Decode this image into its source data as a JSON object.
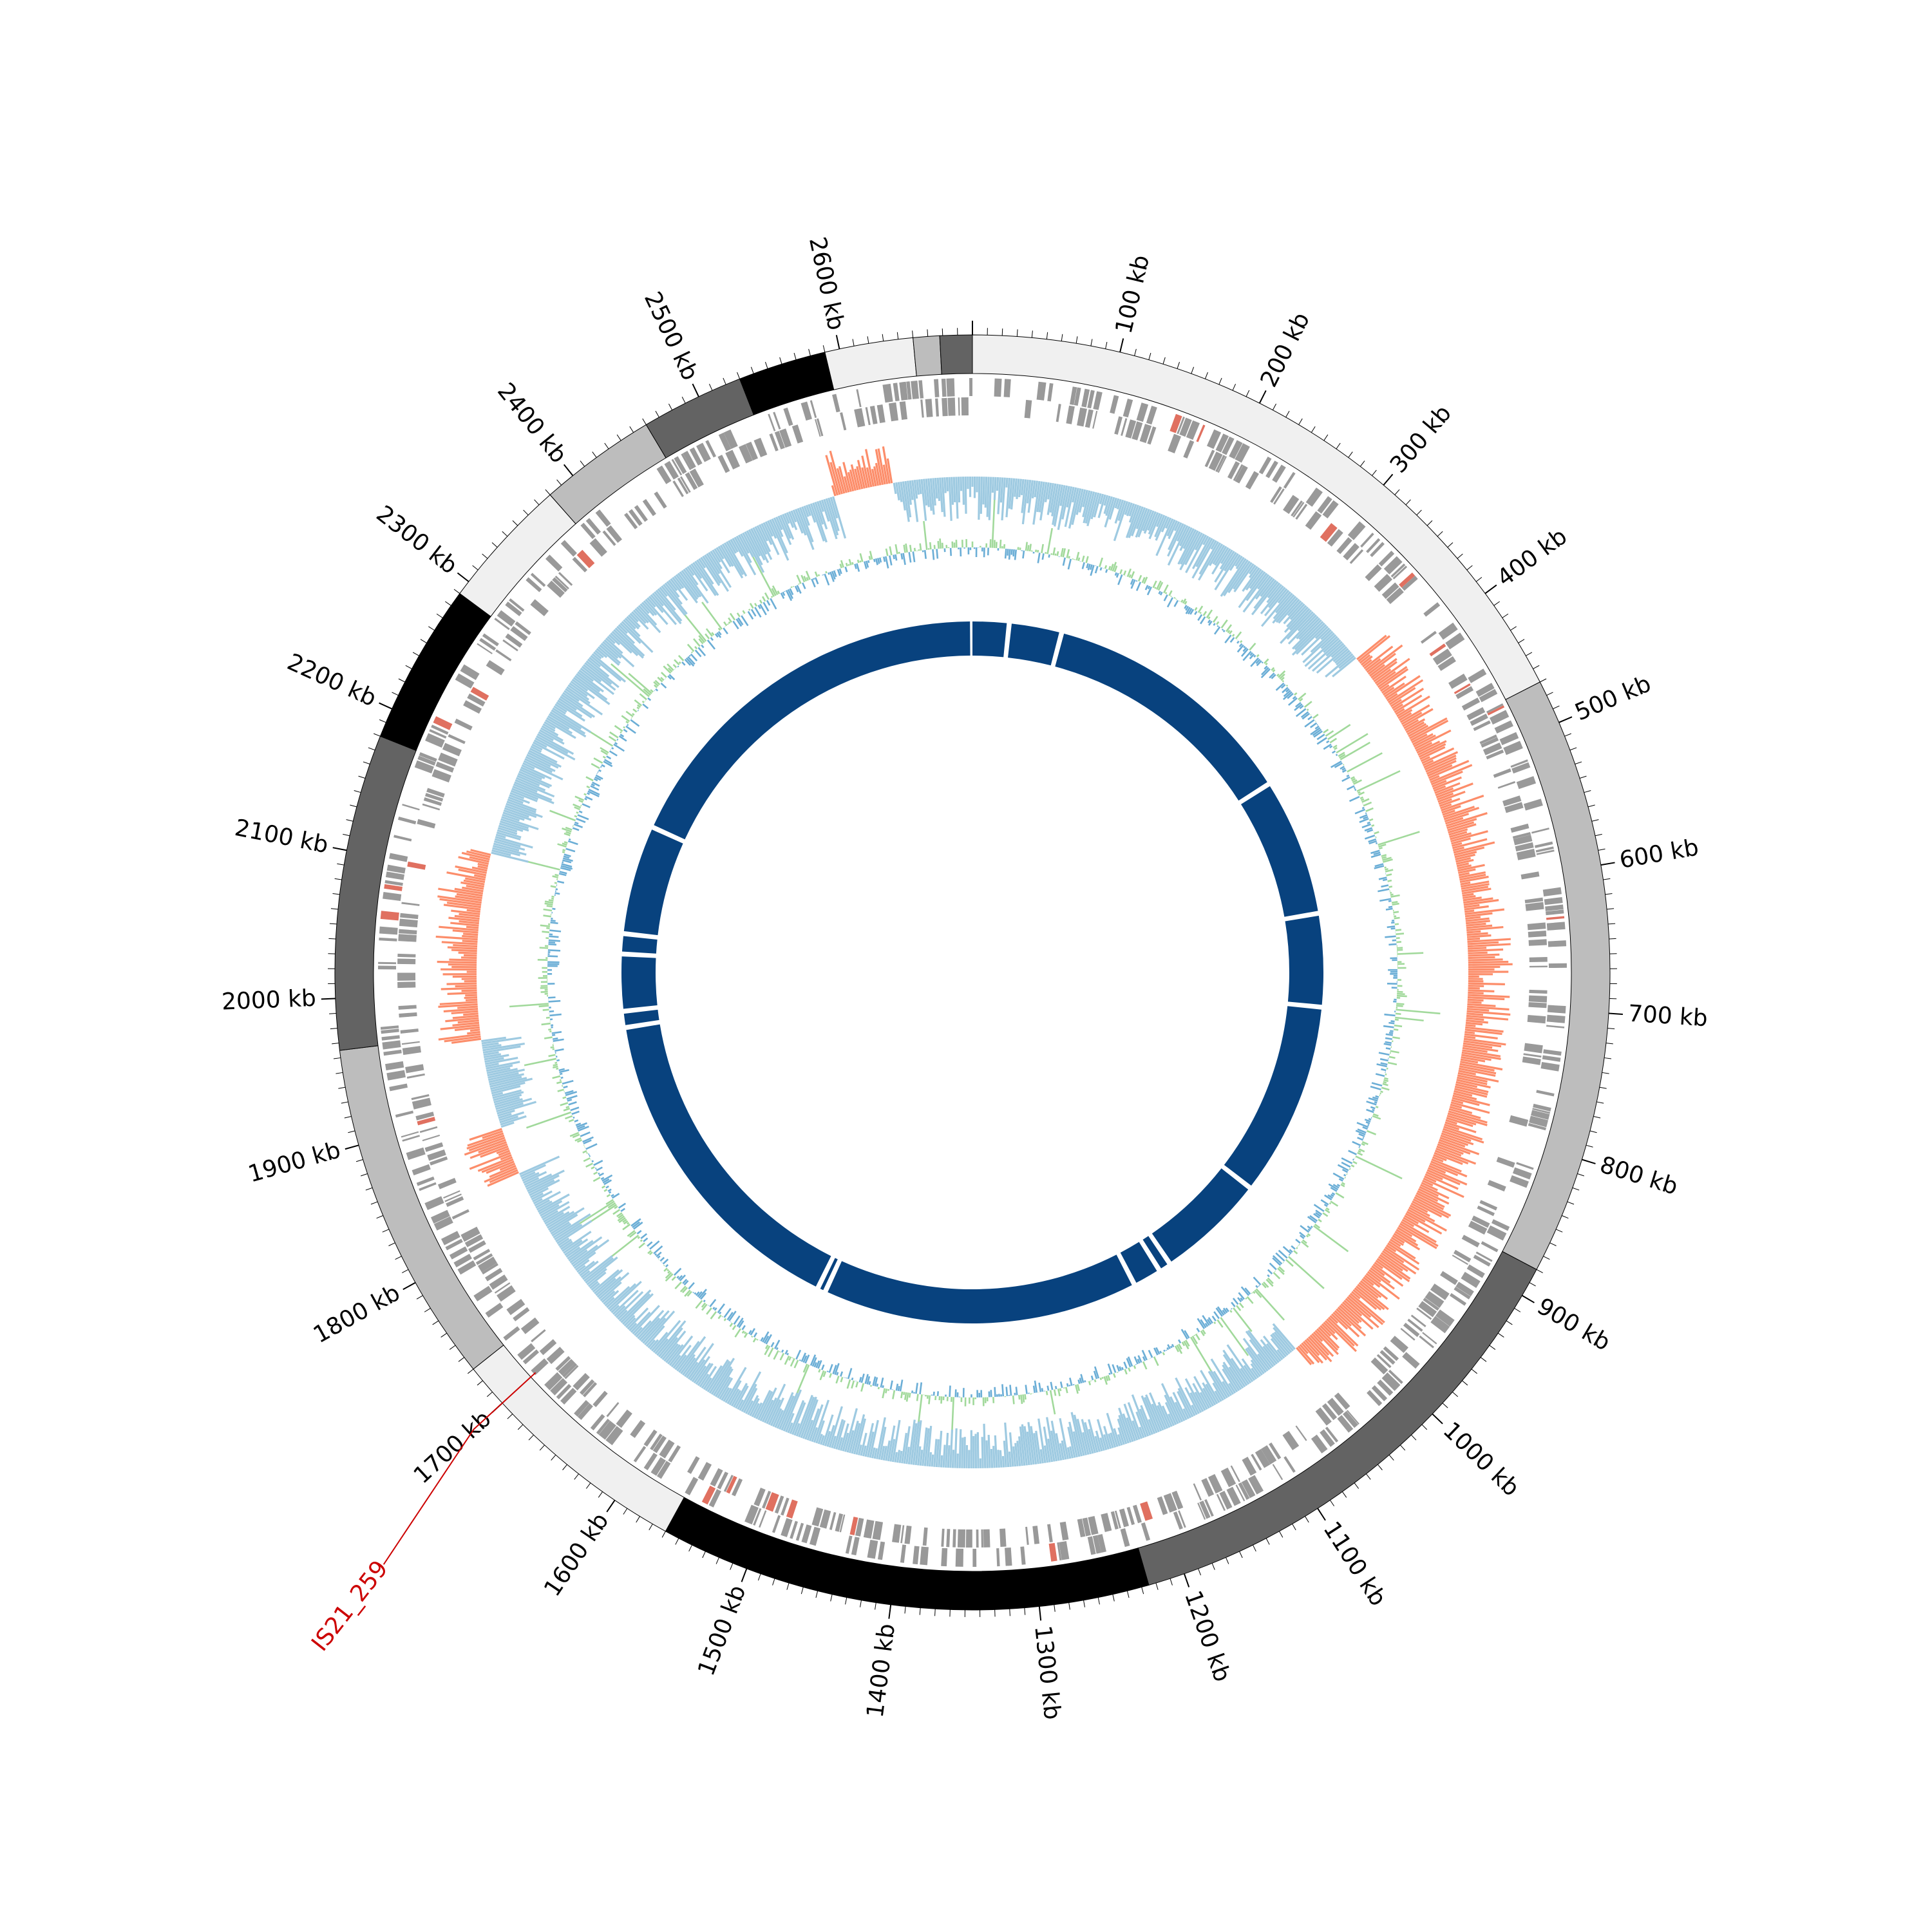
{
  "genome": {
    "length_kb": 2690,
    "tick_labels": [
      {
        "kb": 100,
        "text": "100 kb"
      },
      {
        "kb": 200,
        "text": "200 kb"
      },
      {
        "kb": 300,
        "text": "300 kb"
      },
      {
        "kb": 400,
        "text": "400 kb"
      },
      {
        "kb": 500,
        "text": "500 kb"
      },
      {
        "kb": 600,
        "text": "600 kb"
      },
      {
        "kb": 700,
        "text": "700 kb"
      },
      {
        "kb": 800,
        "text": "800 kb"
      },
      {
        "kb": 900,
        "text": "900 kb"
      },
      {
        "kb": 1000,
        "text": "1000 kb"
      },
      {
        "kb": 1100,
        "text": "1100 kb"
      },
      {
        "kb": 1200,
        "text": "1200 kb"
      },
      {
        "kb": 1300,
        "text": "1300 kb"
      },
      {
        "kb": 1400,
        "text": "1400 kb"
      },
      {
        "kb": 1500,
        "text": "1500 kb"
      },
      {
        "kb": 1600,
        "text": "1600 kb"
      },
      {
        "kb": 1700,
        "text": "1700 kb"
      },
      {
        "kb": 1800,
        "text": "1800 kb"
      },
      {
        "kb": 1900,
        "text": "1900 kb"
      },
      {
        "kb": 2000,
        "text": "2000 kb"
      },
      {
        "kb": 2100,
        "text": "2100 kb"
      },
      {
        "kb": 2200,
        "text": "2200 kb"
      },
      {
        "kb": 2300,
        "text": "2300 kb"
      },
      {
        "kb": 2400,
        "text": "2400 kb"
      },
      {
        "kb": 2500,
        "text": "2500 kb"
      },
      {
        "kb": 2600,
        "text": "2600 kb"
      }
    ]
  },
  "ideogram_bands": [
    {
      "start": 0,
      "end": 470,
      "color": "#f0f0f0"
    },
    {
      "start": 470,
      "end": 880,
      "color": "#bdbdbd"
    },
    {
      "start": 880,
      "end": 1225,
      "color": "#636363"
    },
    {
      "start": 1225,
      "end": 1560,
      "color": "#000000"
    },
    {
      "start": 1560,
      "end": 1730,
      "color": "#f0f0f0"
    },
    {
      "start": 1730,
      "end": 1965,
      "color": "#bdbdbd"
    },
    {
      "start": 1965,
      "end": 2180,
      "color": "#636363"
    },
    {
      "start": 2180,
      "end": 2290,
      "color": "#000000"
    },
    {
      "start": 2290,
      "end": 2380,
      "color": "#f0f0f0"
    },
    {
      "start": 2380,
      "end": 2460,
      "color": "#bdbdbd"
    },
    {
      "start": 2460,
      "end": 2530,
      "color": "#636363"
    },
    {
      "start": 2530,
      "end": 2590,
      "color": "#000000"
    },
    {
      "start": 2590,
      "end": 2650,
      "color": "#f0f0f0"
    },
    {
      "start": 2650,
      "end": 2668,
      "color": "#bdbdbd"
    },
    {
      "start": 2668,
      "end": 2690,
      "color": "#636363"
    }
  ],
  "annotation": {
    "label": "IS21_259",
    "position_kb": 1700,
    "color": "#cc0000"
  },
  "tracks": {
    "genes_color": "#999999",
    "genes_highlight_color": "#e07060",
    "gc_skew_positive_color": "#fc8d6a",
    "gc_skew_negative_color": "#9ecae1",
    "gc_content_above_color": "#a1d99b",
    "gc_content_below_color": "#6baed6",
    "inner_ring_color": "#08427e",
    "inner_ring_gaps_kb": [
      45,
      110,
      430,
      600,
      715,
      955,
      1090,
      1105,
      1140,
      1530,
      1540,
      1950,
      1970,
      2040,
      2065,
      2200
    ]
  },
  "gc_skew_positive_regions": [
    {
      "start": 380,
      "end": 1040
    },
    {
      "start": 1840,
      "end": 1880
    },
    {
      "start": 1960,
      "end": 2120
    },
    {
      "start": 2570,
      "end": 2620
    }
  ]
}
